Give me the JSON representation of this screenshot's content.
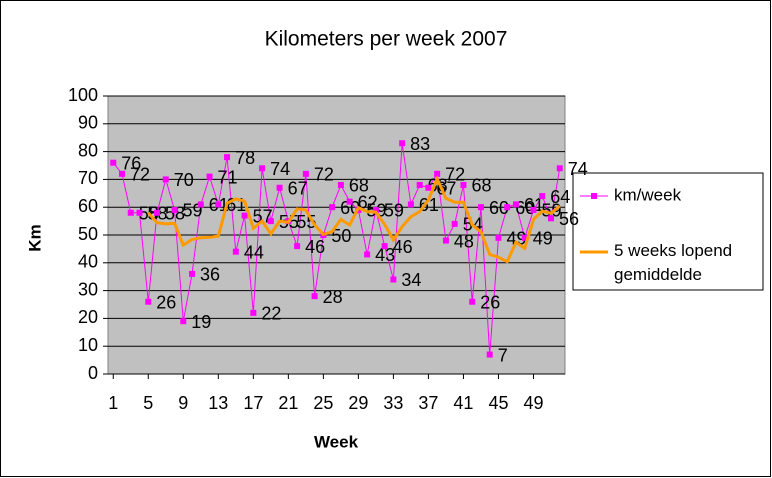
{
  "chart_data": {
    "type": "line",
    "title": "Kilometers per week 2007",
    "x_label": "Week",
    "y_label": "Km",
    "x": [
      1,
      2,
      3,
      4,
      5,
      6,
      7,
      8,
      9,
      10,
      11,
      12,
      13,
      14,
      15,
      16,
      17,
      18,
      19,
      20,
      21,
      22,
      23,
      24,
      25,
      26,
      27,
      28,
      29,
      30,
      31,
      32,
      33,
      34,
      35,
      36,
      37,
      38,
      39,
      40,
      41,
      42,
      43,
      44,
      45,
      46,
      47,
      48,
      49,
      50,
      51,
      52
    ],
    "xlim": [
      0.4,
      52.6
    ],
    "xticks": [
      1,
      5,
      9,
      13,
      17,
      21,
      25,
      29,
      33,
      37,
      41,
      45,
      49
    ],
    "ylim": [
      0,
      100
    ],
    "yticks": [
      0,
      10,
      20,
      30,
      40,
      50,
      60,
      70,
      80,
      90,
      100
    ],
    "grid": true,
    "legend": "right",
    "series": [
      {
        "name": "km/week",
        "color": "#ff00ff",
        "markers": true,
        "data_labels": true,
        "values": [
          76,
          72,
          58,
          58,
          26,
          58,
          70,
          59,
          19,
          36,
          61,
          71,
          61,
          78,
          44,
          57,
          22,
          74,
          55,
          67,
          55,
          46,
          72,
          28,
          50,
          60,
          68,
          62,
          59,
          43,
          59,
          46,
          34,
          83,
          61,
          68,
          67,
          72,
          48,
          54,
          68,
          26,
          60,
          7,
          49,
          60,
          61,
          49,
          59,
          64,
          56,
          74
        ]
      },
      {
        "name": "5 weeks lopend gemiddelde",
        "color": "#ff9900",
        "markers": false,
        "data_labels": false,
        "values": [
          null,
          null,
          null,
          null,
          58,
          54.4,
          54,
          54.2,
          46.4,
          48.4,
          49,
          49.2,
          49.6,
          61.4,
          63,
          62.2,
          52.4,
          55,
          50.4,
          55,
          54.6,
          59.4,
          59,
          53.6,
          50.2,
          51.2,
          55.6,
          53.6,
          59.8,
          58.4,
          58.2,
          53.8,
          48.2,
          53,
          56.6,
          58.4,
          62.6,
          70.2,
          63.2,
          61.8,
          61.8,
          53.6,
          51.2,
          43,
          42,
          40.4,
          47.4,
          45.2,
          55.6,
          58.6,
          57.8,
          60.4
        ]
      }
    ]
  }
}
